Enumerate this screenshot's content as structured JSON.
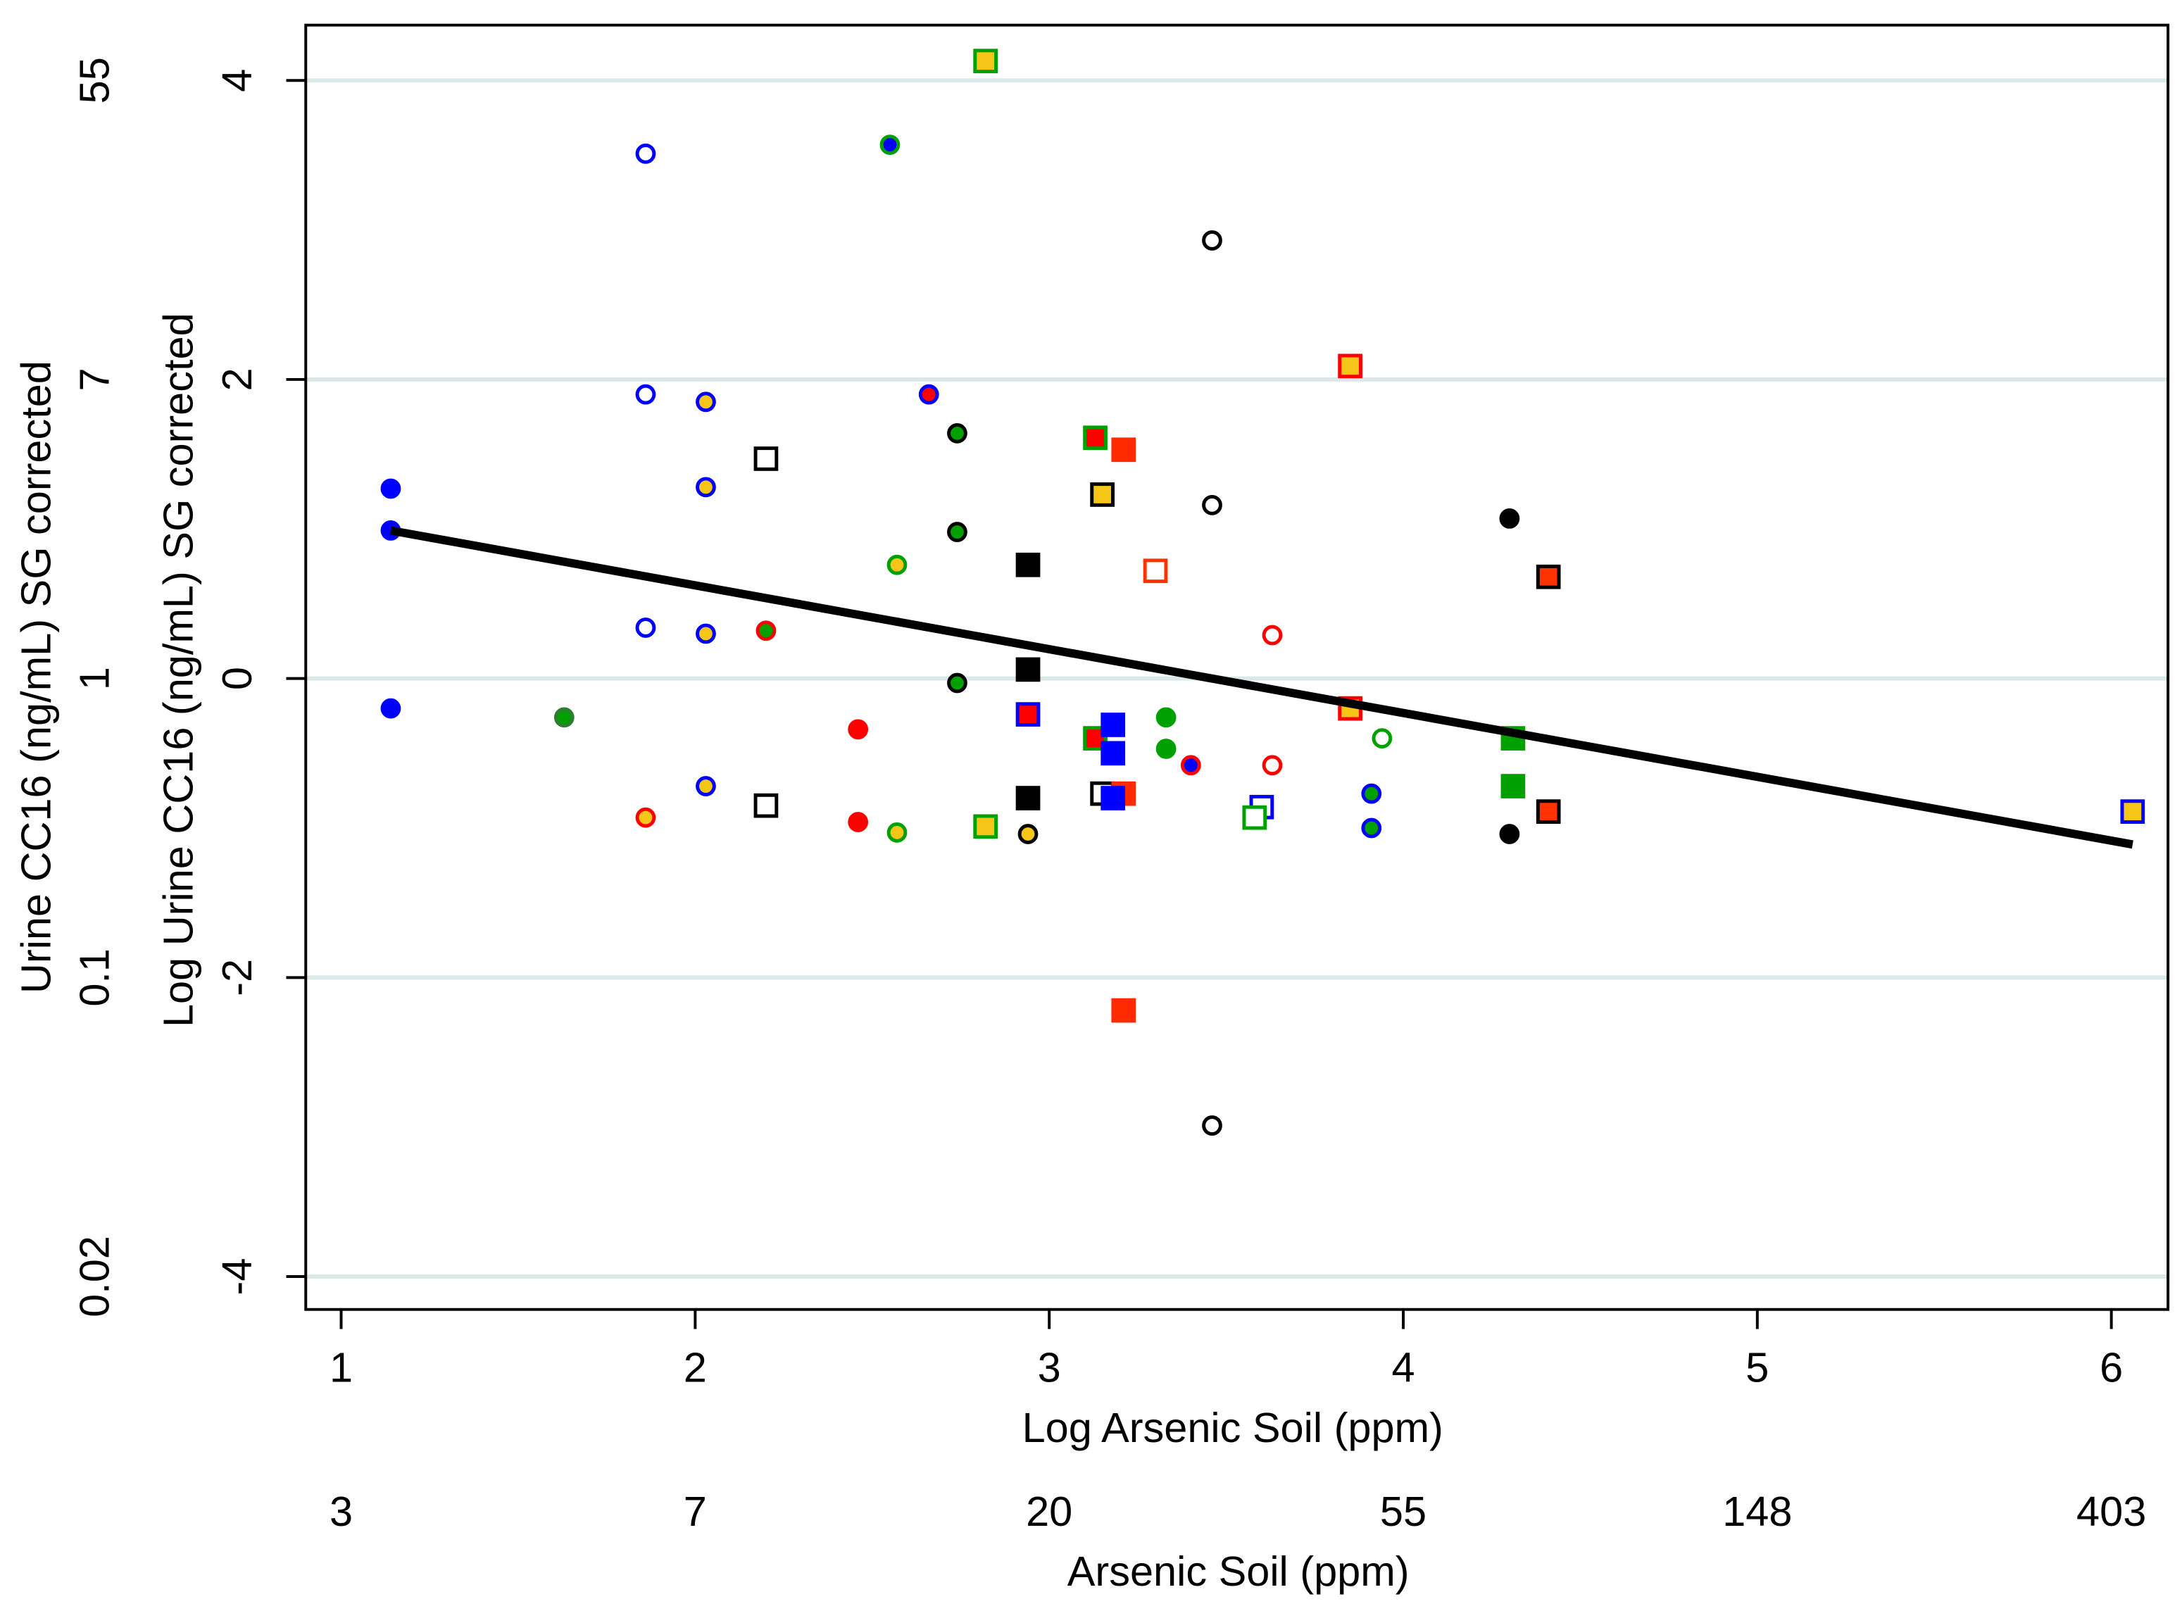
{
  "chart_data": {
    "type": "scatter",
    "xlabel": "Log Arsenic Soil (ppm)",
    "ylabel": "Log Urine CC16 (ng/mL) SG corrected",
    "x_outer_label": "Arsenic Soil (ppm)",
    "y_outer_label": "Urine CC16 (ng/mL) SG corrected",
    "xlim": [
      0.9,
      6.16
    ],
    "ylim": [
      -4.22,
      4.37
    ],
    "xticks": [
      1,
      2,
      3,
      4,
      5,
      6
    ],
    "yticks": [
      -4,
      -2,
      0,
      2,
      4
    ],
    "x_outer_ticks": [
      {
        "value": 1,
        "label": "3"
      },
      {
        "value": 2,
        "label": "7"
      },
      {
        "value": 3,
        "label": "20"
      },
      {
        "value": 4,
        "label": "55"
      },
      {
        "value": 5,
        "label": "148"
      },
      {
        "value": 6,
        "label": "403"
      }
    ],
    "y_outer_ticks": [
      {
        "value": -4,
        "label": "0.02"
      },
      {
        "value": -2,
        "label": "0.1"
      },
      {
        "value": 0,
        "label": "1"
      },
      {
        "value": 2,
        "label": "7"
      },
      {
        "value": 4,
        "label": "55"
      }
    ],
    "grid": true,
    "trend": {
      "color": "#000000",
      "x": [
        1.14,
        6.06
      ],
      "values": [
        0.99,
        -1.11
      ]
    },
    "series": [
      {
        "marker": "circle",
        "color": "#0000ff",
        "edgecolor": "#0000ff",
        "x": [
          1.14,
          1.14,
          1.14
        ],
        "values": [
          1.27,
          0.99,
          -0.2
        ]
      },
      {
        "marker": "circle",
        "color": "#ffffff",
        "edgecolor": "#0000ff",
        "x": [
          1.86,
          1.86,
          1.86
        ],
        "values": [
          3.51,
          1.9,
          0.34
        ]
      },
      {
        "marker": "circle",
        "color": "#f5c518",
        "edgecolor": "#0000ff",
        "x": [
          2.03,
          2.03,
          2.03,
          2.03
        ],
        "values": [
          1.85,
          1.28,
          0.3,
          -0.72
        ]
      },
      {
        "marker": "circle",
        "color": "#00a000",
        "edgecolor": "#2e7d32",
        "x": [
          1.63
        ],
        "values": [
          -0.26
        ]
      },
      {
        "marker": "circle",
        "color": "#0000ff",
        "edgecolor": "#00a000",
        "x": [
          2.55
        ],
        "values": [
          3.57
        ]
      },
      {
        "marker": "circle",
        "color": "#00a000",
        "edgecolor": "#ff0000",
        "x": [
          2.2
        ],
        "values": [
          0.32
        ]
      },
      {
        "marker": "circle",
        "color": "#00a000",
        "edgecolor": "#000000",
        "x": [
          2.74,
          2.74,
          2.74
        ],
        "values": [
          1.64,
          0.98,
          -0.03
        ]
      },
      {
        "marker": "circle",
        "color": "#00a000",
        "edgecolor": "#0000ff",
        "x": [
          3.91,
          3.91
        ],
        "values": [
          -0.77,
          -1.0
        ]
      },
      {
        "marker": "circle",
        "color": "#0000ff",
        "edgecolor": "#ff0000",
        "x": [
          3.4
        ],
        "values": [
          -0.58
        ]
      },
      {
        "marker": "circle",
        "color": "#ff0000",
        "edgecolor": "#0000ff",
        "x": [
          2.66
        ],
        "values": [
          1.9
        ]
      },
      {
        "marker": "circle",
        "color": "#ff0000",
        "edgecolor": "#ff0000",
        "x": [
          2.46,
          2.46
        ],
        "values": [
          -0.34,
          -0.96
        ]
      },
      {
        "marker": "circle",
        "color": "#f5c518",
        "edgecolor": "#ff0000",
        "x": [
          1.86
        ],
        "values": [
          -0.93
        ]
      },
      {
        "marker": "circle",
        "color": "#f5c518",
        "edgecolor": "#00a000",
        "x": [
          2.57,
          2.57
        ],
        "values": [
          0.76,
          -1.03
        ]
      },
      {
        "marker": "circle",
        "color": "#ffffff",
        "edgecolor": "#00a000",
        "x": [
          3.94
        ],
        "values": [
          -0.4
        ]
      },
      {
        "marker": "circle",
        "color": "#000000",
        "edgecolor": "#000000",
        "x": [
          4.3,
          4.3
        ],
        "values": [
          1.07,
          -1.04
        ]
      },
      {
        "marker": "circle",
        "color": "#ffffff",
        "edgecolor": "#000000",
        "x": [
          3.46,
          3.46,
          3.46
        ],
        "values": [
          2.93,
          1.16,
          -2.99
        ]
      },
      {
        "marker": "circle",
        "color": "#f5c518",
        "edgecolor": "#000000",
        "x": [
          2.94
        ],
        "values": [
          -1.04
        ]
      },
      {
        "marker": "circle",
        "color": "#ffffff",
        "edgecolor": "#ff0000",
        "x": [
          3.63,
          3.63
        ],
        "values": [
          0.29,
          -0.58
        ]
      },
      {
        "marker": "circle",
        "color": "#00a000",
        "edgecolor": "#00a000",
        "x": [
          3.33,
          3.33
        ],
        "values": [
          -0.26,
          -0.47
        ]
      },
      {
        "marker": "square",
        "color": "#f5c518",
        "edgecolor": "#00a000",
        "x": [
          2.82,
          2.82
        ],
        "values": [
          4.13,
          -0.99
        ]
      },
      {
        "marker": "square",
        "color": "#ffffff",
        "edgecolor": "#000000",
        "x": [
          2.2,
          2.2,
          3.15
        ],
        "values": [
          1.47,
          -0.85,
          -0.77
        ]
      },
      {
        "marker": "square",
        "color": "#ff0000",
        "edgecolor": "#00a000",
        "x": [
          3.13,
          3.13
        ],
        "values": [
          1.61,
          -0.4
        ]
      },
      {
        "marker": "square",
        "color": "#ff2a00",
        "edgecolor": "#ff2a00",
        "x": [
          3.21,
          3.21,
          3.21
        ],
        "values": [
          1.53,
          -0.77,
          -2.22
        ]
      },
      {
        "marker": "square",
        "color": "#f5c518",
        "edgecolor": "#000000",
        "x": [
          3.15
        ],
        "values": [
          1.23
        ]
      },
      {
        "marker": "square",
        "color": "#f5c518",
        "edgecolor": "#ff0000",
        "x": [
          3.85,
          3.85
        ],
        "values": [
          2.09,
          -0.2
        ]
      },
      {
        "marker": "square",
        "color": "#000000",
        "edgecolor": "#000000",
        "x": [
          2.94,
          2.94,
          2.94
        ],
        "values": [
          0.76,
          0.06,
          -0.8
        ]
      },
      {
        "marker": "square",
        "color": "#ff0000",
        "edgecolor": "#0000ff",
        "x": [
          2.94
        ],
        "values": [
          -0.24
        ]
      },
      {
        "marker": "square",
        "color": "#0000ff",
        "edgecolor": "#0000ff",
        "x": [
          3.18,
          3.18,
          3.18
        ],
        "values": [
          -0.31,
          -0.5,
          -0.8
        ]
      },
      {
        "marker": "square",
        "color": "#ffffff",
        "edgecolor": "#ff3300",
        "x": [
          3.3
        ],
        "values": [
          0.72
        ]
      },
      {
        "marker": "square",
        "color": "#ffffff",
        "edgecolor": "#0000ff",
        "x": [
          3.6
        ],
        "values": [
          -0.86
        ]
      },
      {
        "marker": "square",
        "color": "#ffffff",
        "edgecolor": "#00a000",
        "x": [
          3.58
        ],
        "values": [
          -0.93
        ]
      },
      {
        "marker": "square",
        "color": "#00a000",
        "edgecolor": "#00a000",
        "x": [
          4.31,
          4.31
        ],
        "values": [
          -0.4,
          -0.72
        ]
      },
      {
        "marker": "square",
        "color": "#ff3300",
        "edgecolor": "#000000",
        "x": [
          4.41,
          4.41
        ],
        "values": [
          0.68,
          -0.89
        ]
      },
      {
        "marker": "square",
        "color": "#f5c518",
        "edgecolor": "#0000ff",
        "x": [
          6.06
        ],
        "values": [
          -0.89
        ]
      }
    ]
  }
}
